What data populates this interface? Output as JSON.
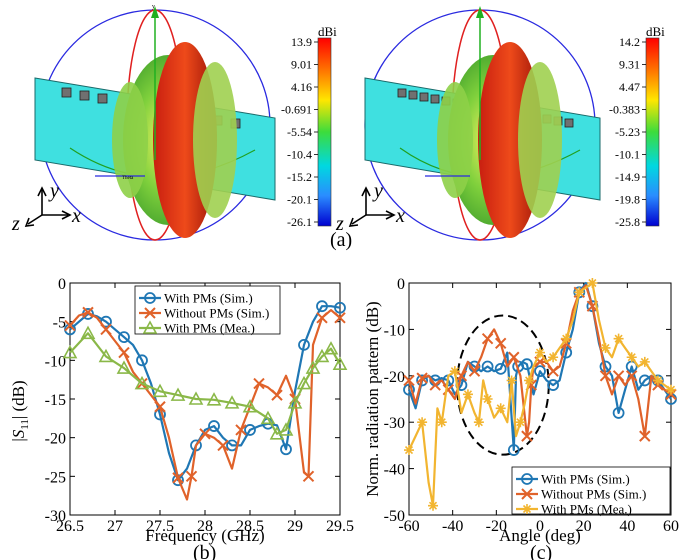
{
  "figure": {
    "panel_a_label": "(a)",
    "panel_b_label": "(b)",
    "panel_c_label": "(c)",
    "axis_triad": {
      "x": "x",
      "y": "y",
      "z": "z"
    },
    "pattern_annotations": {
      "axis_y": "y",
      "theta": "Theta"
    }
  },
  "colorbars": [
    {
      "unit": "dBi",
      "ticks": [
        "13.9",
        "9.01",
        "4.16",
        "-0.691",
        "-5.54",
        "-10.4",
        "-15.2",
        "-20.1",
        "-26.1"
      ]
    },
    {
      "unit": "dBi",
      "ticks": [
        "14.2",
        "9.31",
        "4.47",
        "-0.383",
        "-5.23",
        "-10.1",
        "-14.9",
        "-19.8",
        "-25.8"
      ]
    }
  ],
  "colors": {
    "blue": "#1f77b4",
    "orange": "#e0622a",
    "green": "#8ab848",
    "yellow": "#f2b530",
    "panel": "#3fe0e0",
    "ellipse": "#000000"
  },
  "chart_data": [
    {
      "type": "line",
      "xlabel": "Frequency (GHz)",
      "ylabel": "|S11| (dB)",
      "xlim": [
        26.5,
        29.5
      ],
      "ylim": [
        -30,
        0
      ],
      "xticks": [
        26.5,
        27,
        27.5,
        28,
        28.5,
        29,
        29.5
      ],
      "yticks": [
        0,
        -5,
        -10,
        -15,
        -20,
        -25,
        -30
      ],
      "xtick_labels": [
        "26.5",
        "27",
        "27.5",
        "28",
        "28.5",
        "29",
        "29.5"
      ],
      "ytick_labels": [
        "0",
        "-5",
        "-10",
        "-15",
        "-20",
        "-25",
        "-30"
      ],
      "legend": "top-center",
      "series": [
        {
          "name": "With PMs (Sim.)",
          "color": "#1f77b4",
          "marker": "circle",
          "x": [
            26.5,
            26.6,
            26.7,
            26.8,
            26.9,
            27.0,
            27.1,
            27.2,
            27.3,
            27.4,
            27.5,
            27.6,
            27.7,
            27.8,
            27.9,
            28.0,
            28.1,
            28.2,
            28.3,
            28.4,
            28.5,
            28.6,
            28.7,
            28.8,
            28.9,
            29.0,
            29.1,
            29.2,
            29.3,
            29.4,
            29.5
          ],
          "y": [
            -6,
            -5,
            -4,
            -4.3,
            -5,
            -6,
            -7,
            -8,
            -10,
            -13,
            -17,
            -22,
            -25.5,
            -24,
            -21,
            -19,
            -18.5,
            -20,
            -21,
            -21,
            -19,
            -18.5,
            -18.2,
            -18.4,
            -21.5,
            -14,
            -8,
            -5,
            -3,
            -3,
            -3.2
          ]
        },
        {
          "name": "Without PMs (Sim.)",
          "color": "#e0622a",
          "marker": "x",
          "x": [
            26.5,
            26.6,
            26.7,
            26.8,
            26.9,
            27.0,
            27.1,
            27.2,
            27.3,
            27.4,
            27.5,
            27.6,
            27.7,
            27.8,
            27.85,
            27.9,
            28.0,
            28.1,
            28.2,
            28.3,
            28.4,
            28.5,
            28.6,
            28.7,
            28.8,
            28.9,
            29.0,
            29.1,
            29.15,
            29.2,
            29.3,
            29.4,
            29.5
          ],
          "y": [
            -5.5,
            -4.2,
            -3.8,
            -4.5,
            -6,
            -7.5,
            -9,
            -11.5,
            -13,
            -14.5,
            -16,
            -20,
            -25.2,
            -28,
            -25,
            -21,
            -19.5,
            -20,
            -21,
            -24,
            -19,
            -16,
            -13,
            -13.5,
            -14.5,
            -12,
            -15,
            -24.5,
            -25,
            -8,
            -4.5,
            -3.5,
            -4.5
          ]
        },
        {
          "name": "With PMs (Mea.)",
          "color": "#8ab848",
          "marker": "triangle",
          "x": [
            26.5,
            26.7,
            26.9,
            27.1,
            27.3,
            27.5,
            27.7,
            27.9,
            28.1,
            28.3,
            28.5,
            28.7,
            28.8,
            28.9,
            29.0,
            29.1,
            29.2,
            29.3,
            29.4,
            29.5
          ],
          "y": [
            -9,
            -6.5,
            -9.5,
            -11,
            -13,
            -14,
            -14.5,
            -15,
            -15.1,
            -15.5,
            -16,
            -17.5,
            -19.5,
            -19,
            -15.5,
            -13,
            -11,
            -9.5,
            -8.5,
            -10.5
          ]
        }
      ]
    },
    {
      "type": "line",
      "xlabel": "Angle (deg)",
      "ylabel": "Norm. radiation pattern (dB)",
      "xlim": [
        -60,
        60
      ],
      "ylim": [
        -50,
        0
      ],
      "xticks": [
        -60,
        -40,
        -20,
        0,
        20,
        40,
        60
      ],
      "yticks": [
        0,
        -10,
        -20,
        -30,
        -40,
        -50
      ],
      "xtick_labels": [
        "-60",
        "-40",
        "-20",
        "0",
        "20",
        "40",
        "60"
      ],
      "ytick_labels": [
        "0",
        "-10",
        "-20",
        "-30",
        "-40",
        "-50"
      ],
      "legend": "bottom-right",
      "annotation": {
        "type": "dashed-ellipse",
        "center": [
          -17,
          -22
        ],
        "radii": [
          21,
          15
        ]
      },
      "series": [
        {
          "name": "With PMs (Sim.)",
          "color": "#1f77b4",
          "marker": "circle",
          "x": [
            -60,
            -57,
            -54,
            -51,
            -48,
            -45,
            -42,
            -39,
            -36,
            -33,
            -30,
            -27,
            -24,
            -21,
            -18,
            -15,
            -12,
            -11,
            -10,
            -8,
            -6,
            -3,
            0,
            3,
            6,
            9,
            12,
            15,
            18,
            21,
            24,
            27,
            30,
            33,
            36,
            39,
            42,
            45,
            48,
            51,
            54,
            57,
            60
          ],
          "y": [
            -23,
            -27,
            -21,
            -20,
            -21,
            -20.5,
            -21,
            -24,
            -22,
            -17,
            -18,
            -19,
            -18,
            -19,
            -18.5,
            -15,
            -36,
            -20,
            -18,
            -17,
            -17.5,
            -24,
            -19,
            -21,
            -22,
            -21,
            -15,
            -10,
            -2,
            0,
            -5,
            -13,
            -18,
            -20,
            -28,
            -23,
            -18,
            -23,
            -21,
            -20,
            -21,
            -23,
            -25
          ]
        },
        {
          "name": "Without PMs (Sim.)",
          "color": "#e0622a",
          "marker": "x",
          "x": [
            -60,
            -57,
            -54,
            -51,
            -48,
            -45,
            -42,
            -39,
            -36,
            -33,
            -30,
            -27,
            -24,
            -21,
            -18,
            -15,
            -12,
            -9,
            -6,
            -5,
            -4,
            -3,
            0,
            3,
            6,
            9,
            12,
            15,
            18,
            21,
            24,
            27,
            30,
            33,
            36,
            39,
            42,
            45,
            48,
            51,
            54,
            57,
            60
          ],
          "y": [
            -21,
            -26,
            -20.5,
            -20,
            -22,
            -21,
            -23,
            -25,
            -20,
            -17,
            -19,
            -16,
            -12,
            -10,
            -13,
            -18,
            -16,
            -20,
            -33,
            -30,
            -22,
            -18,
            -17,
            -17,
            -19,
            -18,
            -13,
            -6,
            -2,
            -0.5,
            -5,
            -12,
            -20,
            -24,
            -20,
            -22,
            -20,
            -25,
            -33,
            -20,
            -22,
            -23,
            -24
          ]
        },
        {
          "name": "With PMs (Mea.)",
          "color": "#f2b530",
          "marker": "star",
          "x": [
            -60,
            -57,
            -54,
            -51,
            -49,
            -47,
            -45,
            -42,
            -39,
            -36,
            -33,
            -30,
            -28,
            -26,
            -24,
            -21,
            -18,
            -15,
            -13,
            -11,
            -9,
            -7,
            -5,
            -3,
            0,
            3,
            6,
            9,
            12,
            15,
            18,
            21,
            24,
            27,
            30,
            33,
            36,
            39,
            42,
            45,
            48,
            51,
            54,
            57,
            60
          ],
          "y": [
            -36,
            -33,
            -30,
            -43,
            -48,
            -27,
            -30,
            -20,
            -19,
            -28,
            -24,
            -28,
            -30,
            -21,
            -25,
            -29,
            -27,
            -30,
            -21,
            -33,
            -30,
            -26,
            -21,
            -18,
            -15,
            -17,
            -16,
            -14,
            -12,
            -8,
            -2,
            -1,
            0,
            -8,
            -14,
            -16,
            -12,
            -14,
            -16,
            -18,
            -17,
            -19,
            -21,
            -22,
            -23
          ]
        }
      ]
    }
  ]
}
